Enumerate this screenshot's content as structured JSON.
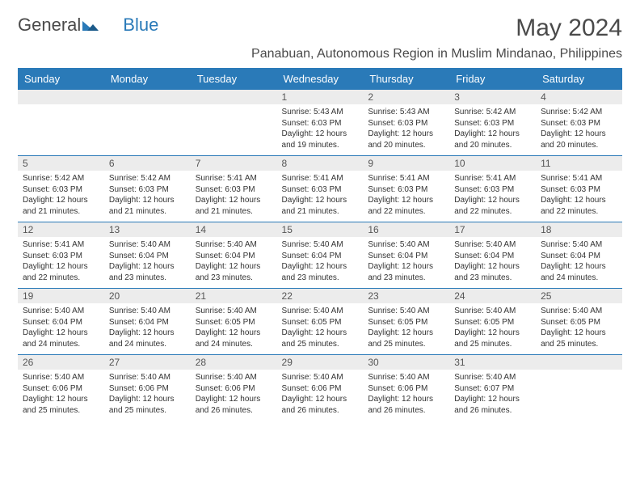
{
  "logo": {
    "text1": "General",
    "text2": "Blue"
  },
  "title": "May 2024",
  "subtitle": "Panabuan, Autonomous Region in Muslim Mindanao, Philippines",
  "colors": {
    "header_bg": "#2a7ab8",
    "header_text": "#ffffff",
    "daynum_bg": "#ececec",
    "border": "#2a7ab8",
    "text": "#333333"
  },
  "dayHeaders": [
    "Sunday",
    "Monday",
    "Tuesday",
    "Wednesday",
    "Thursday",
    "Friday",
    "Saturday"
  ],
  "weeks": [
    [
      {
        "n": "",
        "sr": "",
        "ss": "",
        "dl": ""
      },
      {
        "n": "",
        "sr": "",
        "ss": "",
        "dl": ""
      },
      {
        "n": "",
        "sr": "",
        "ss": "",
        "dl": ""
      },
      {
        "n": "1",
        "sr": "Sunrise: 5:43 AM",
        "ss": "Sunset: 6:03 PM",
        "dl": "Daylight: 12 hours and 19 minutes."
      },
      {
        "n": "2",
        "sr": "Sunrise: 5:43 AM",
        "ss": "Sunset: 6:03 PM",
        "dl": "Daylight: 12 hours and 20 minutes."
      },
      {
        "n": "3",
        "sr": "Sunrise: 5:42 AM",
        "ss": "Sunset: 6:03 PM",
        "dl": "Daylight: 12 hours and 20 minutes."
      },
      {
        "n": "4",
        "sr": "Sunrise: 5:42 AM",
        "ss": "Sunset: 6:03 PM",
        "dl": "Daylight: 12 hours and 20 minutes."
      }
    ],
    [
      {
        "n": "5",
        "sr": "Sunrise: 5:42 AM",
        "ss": "Sunset: 6:03 PM",
        "dl": "Daylight: 12 hours and 21 minutes."
      },
      {
        "n": "6",
        "sr": "Sunrise: 5:42 AM",
        "ss": "Sunset: 6:03 PM",
        "dl": "Daylight: 12 hours and 21 minutes."
      },
      {
        "n": "7",
        "sr": "Sunrise: 5:41 AM",
        "ss": "Sunset: 6:03 PM",
        "dl": "Daylight: 12 hours and 21 minutes."
      },
      {
        "n": "8",
        "sr": "Sunrise: 5:41 AM",
        "ss": "Sunset: 6:03 PM",
        "dl": "Daylight: 12 hours and 21 minutes."
      },
      {
        "n": "9",
        "sr": "Sunrise: 5:41 AM",
        "ss": "Sunset: 6:03 PM",
        "dl": "Daylight: 12 hours and 22 minutes."
      },
      {
        "n": "10",
        "sr": "Sunrise: 5:41 AM",
        "ss": "Sunset: 6:03 PM",
        "dl": "Daylight: 12 hours and 22 minutes."
      },
      {
        "n": "11",
        "sr": "Sunrise: 5:41 AM",
        "ss": "Sunset: 6:03 PM",
        "dl": "Daylight: 12 hours and 22 minutes."
      }
    ],
    [
      {
        "n": "12",
        "sr": "Sunrise: 5:41 AM",
        "ss": "Sunset: 6:03 PM",
        "dl": "Daylight: 12 hours and 22 minutes."
      },
      {
        "n": "13",
        "sr": "Sunrise: 5:40 AM",
        "ss": "Sunset: 6:04 PM",
        "dl": "Daylight: 12 hours and 23 minutes."
      },
      {
        "n": "14",
        "sr": "Sunrise: 5:40 AM",
        "ss": "Sunset: 6:04 PM",
        "dl": "Daylight: 12 hours and 23 minutes."
      },
      {
        "n": "15",
        "sr": "Sunrise: 5:40 AM",
        "ss": "Sunset: 6:04 PM",
        "dl": "Daylight: 12 hours and 23 minutes."
      },
      {
        "n": "16",
        "sr": "Sunrise: 5:40 AM",
        "ss": "Sunset: 6:04 PM",
        "dl": "Daylight: 12 hours and 23 minutes."
      },
      {
        "n": "17",
        "sr": "Sunrise: 5:40 AM",
        "ss": "Sunset: 6:04 PM",
        "dl": "Daylight: 12 hours and 23 minutes."
      },
      {
        "n": "18",
        "sr": "Sunrise: 5:40 AM",
        "ss": "Sunset: 6:04 PM",
        "dl": "Daylight: 12 hours and 24 minutes."
      }
    ],
    [
      {
        "n": "19",
        "sr": "Sunrise: 5:40 AM",
        "ss": "Sunset: 6:04 PM",
        "dl": "Daylight: 12 hours and 24 minutes."
      },
      {
        "n": "20",
        "sr": "Sunrise: 5:40 AM",
        "ss": "Sunset: 6:04 PM",
        "dl": "Daylight: 12 hours and 24 minutes."
      },
      {
        "n": "21",
        "sr": "Sunrise: 5:40 AM",
        "ss": "Sunset: 6:05 PM",
        "dl": "Daylight: 12 hours and 24 minutes."
      },
      {
        "n": "22",
        "sr": "Sunrise: 5:40 AM",
        "ss": "Sunset: 6:05 PM",
        "dl": "Daylight: 12 hours and 25 minutes."
      },
      {
        "n": "23",
        "sr": "Sunrise: 5:40 AM",
        "ss": "Sunset: 6:05 PM",
        "dl": "Daylight: 12 hours and 25 minutes."
      },
      {
        "n": "24",
        "sr": "Sunrise: 5:40 AM",
        "ss": "Sunset: 6:05 PM",
        "dl": "Daylight: 12 hours and 25 minutes."
      },
      {
        "n": "25",
        "sr": "Sunrise: 5:40 AM",
        "ss": "Sunset: 6:05 PM",
        "dl": "Daylight: 12 hours and 25 minutes."
      }
    ],
    [
      {
        "n": "26",
        "sr": "Sunrise: 5:40 AM",
        "ss": "Sunset: 6:06 PM",
        "dl": "Daylight: 12 hours and 25 minutes."
      },
      {
        "n": "27",
        "sr": "Sunrise: 5:40 AM",
        "ss": "Sunset: 6:06 PM",
        "dl": "Daylight: 12 hours and 25 minutes."
      },
      {
        "n": "28",
        "sr": "Sunrise: 5:40 AM",
        "ss": "Sunset: 6:06 PM",
        "dl": "Daylight: 12 hours and 26 minutes."
      },
      {
        "n": "29",
        "sr": "Sunrise: 5:40 AM",
        "ss": "Sunset: 6:06 PM",
        "dl": "Daylight: 12 hours and 26 minutes."
      },
      {
        "n": "30",
        "sr": "Sunrise: 5:40 AM",
        "ss": "Sunset: 6:06 PM",
        "dl": "Daylight: 12 hours and 26 minutes."
      },
      {
        "n": "31",
        "sr": "Sunrise: 5:40 AM",
        "ss": "Sunset: 6:07 PM",
        "dl": "Daylight: 12 hours and 26 minutes."
      },
      {
        "n": "",
        "sr": "",
        "ss": "",
        "dl": ""
      }
    ]
  ]
}
